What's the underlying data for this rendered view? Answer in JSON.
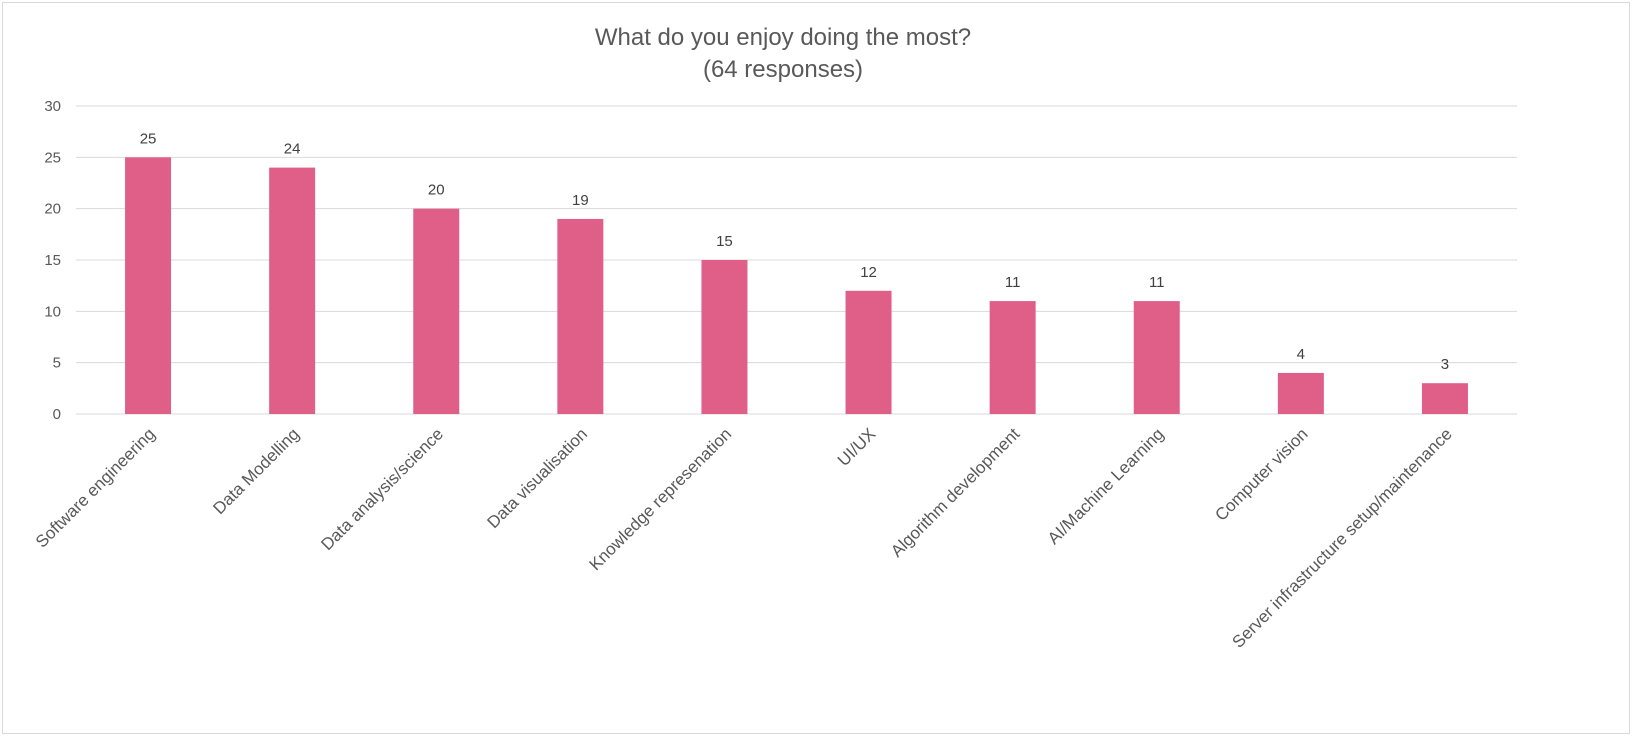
{
  "chart_data": {
    "type": "bar",
    "title": "What do you enjoy doing the most?",
    "subtitle": "(64 responses)",
    "xlabel": "",
    "ylabel": "",
    "ylim": [
      0,
      30
    ],
    "yticks": [
      0,
      5,
      10,
      15,
      20,
      25,
      30
    ],
    "grid": true,
    "legend": "none",
    "bar_color": "#e05f89",
    "grid_color": "#d9d9d9",
    "categories": [
      "Software engineering",
      "Data Modelling",
      "Data analysis/science",
      "Data visualisation",
      "Knowledge represenation",
      "UI/UX",
      "Algorithm development",
      "AI/Machine Learning",
      "Computer vision",
      "Server infrastructure setup/maintenance"
    ],
    "values": [
      25,
      24,
      20,
      19,
      15,
      12,
      11,
      11,
      4,
      3
    ]
  }
}
